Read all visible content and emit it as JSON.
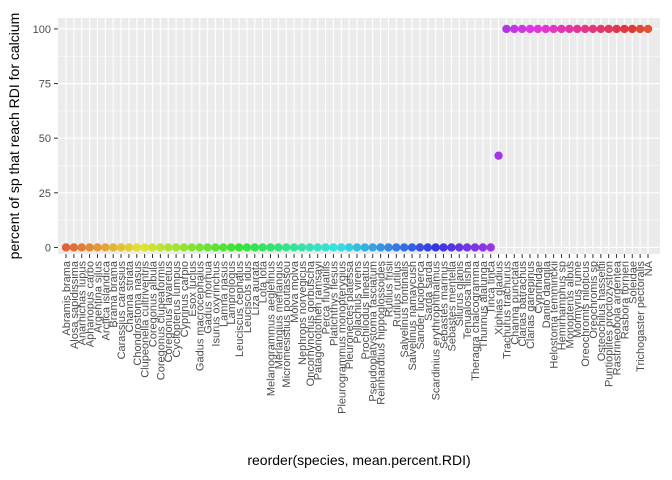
{
  "chart_data": {
    "type": "scatter",
    "xlabel": "reorder(species, mean.percent.RDI)",
    "ylabel": "percent of sp that reach RDI for calcium",
    "ylim": [
      -3,
      105
    ],
    "y_ticks": [
      0,
      25,
      50,
      75,
      100
    ],
    "grid": true,
    "legend": "none",
    "panel_color": "#ebebeb",
    "grid_color": "#ffffff",
    "categories": [
      "Abramis brama",
      "Alosa sapidissima",
      "Anarhichas lupus",
      "Aphanopus carbo",
      "Argentina silus",
      "Arctica islandica",
      "Brama brama",
      "Carassius carassius",
      "Channa striata",
      "Chondrostoma nasus",
      "Clupeonella cultriventris",
      "Coregonus albula",
      "Coregonus clupeaformis",
      "Coregonus lavaretus",
      "Cyclopterus lumpus",
      "Cyprinus carpio",
      "Esox lucius",
      "Gadus macrocephalus",
      "Gadus morhua",
      "Isurus oxyrinchus",
      "Lamna nasus",
      "Lamprologus",
      "Leuciscus cephalus",
      "Leuciscus idus",
      "Liza aurata",
      "Lota lota",
      "Melanogrammus aeglefinus",
      "Merlangius merlangus",
      "Micromesistius poutassou",
      "Molva molva",
      "Nephrops norvegicus",
      "Oncorhynchus gorbuscha",
      "Patagonotothen ramsayi",
      "Perca fluviatilis",
      "Platichthys flesus",
      "Pleurogrammus monopterygius",
      "Pleuronectes platessa",
      "Pollachius virens",
      "Prochilodus lineatus",
      "Pseudoplatystoma fasciatum",
      "Reinhardtius hippoglossoides",
      "Rutilus frisii",
      "Rutilus rutilus",
      "Salvelinus fontinalis",
      "Salvelinus namaycush",
      "Sander lucioperca",
      "Sarda sarda",
      "Scardinius erythrophthalmus",
      "Sebastes marinus",
      "Sebastes mentella",
      "Silurus glanis",
      "Tenualosa ilisha",
      "Theragra chalcogramma",
      "Thunnus alalunga",
      "Tinca tinca",
      "Xiphias gladius",
      "Trachurus trachurus",
      "Channa punctata",
      "Clarias batrachus",
      "Clarias gariepinus",
      "Cyprinidae",
      "Danio dangila",
      "Helostoma temminckii",
      "Hemirhamphus sp",
      "Monopterus albus",
      "Mormyrus rume",
      "Oreochromis niloticus",
      "Oreochromis sp",
      "Osteochilus hasseltii",
      "Puntioplites proctozystron",
      "Rastrineobola argentea",
      "Rasbora tornieri",
      "Soleidae",
      "Trichogaster pectoralis",
      "NA"
    ],
    "values": [
      0,
      0,
      0,
      0,
      0,
      0,
      0,
      0,
      0,
      0,
      0,
      0,
      0,
      0,
      0,
      0,
      0,
      0,
      0,
      0,
      0,
      0,
      0,
      0,
      0,
      0,
      0,
      0,
      0,
      0,
      0,
      0,
      0,
      0,
      0,
      0,
      0,
      0,
      0,
      0,
      0,
      0,
      0,
      0,
      0,
      0,
      0,
      0,
      0,
      0,
      0,
      0,
      0,
      0,
      0,
      42,
      100,
      100,
      100,
      100,
      100,
      100,
      100,
      100,
      100,
      100,
      100,
      100,
      100,
      100,
      100,
      100,
      100,
      100,
      100
    ]
  }
}
